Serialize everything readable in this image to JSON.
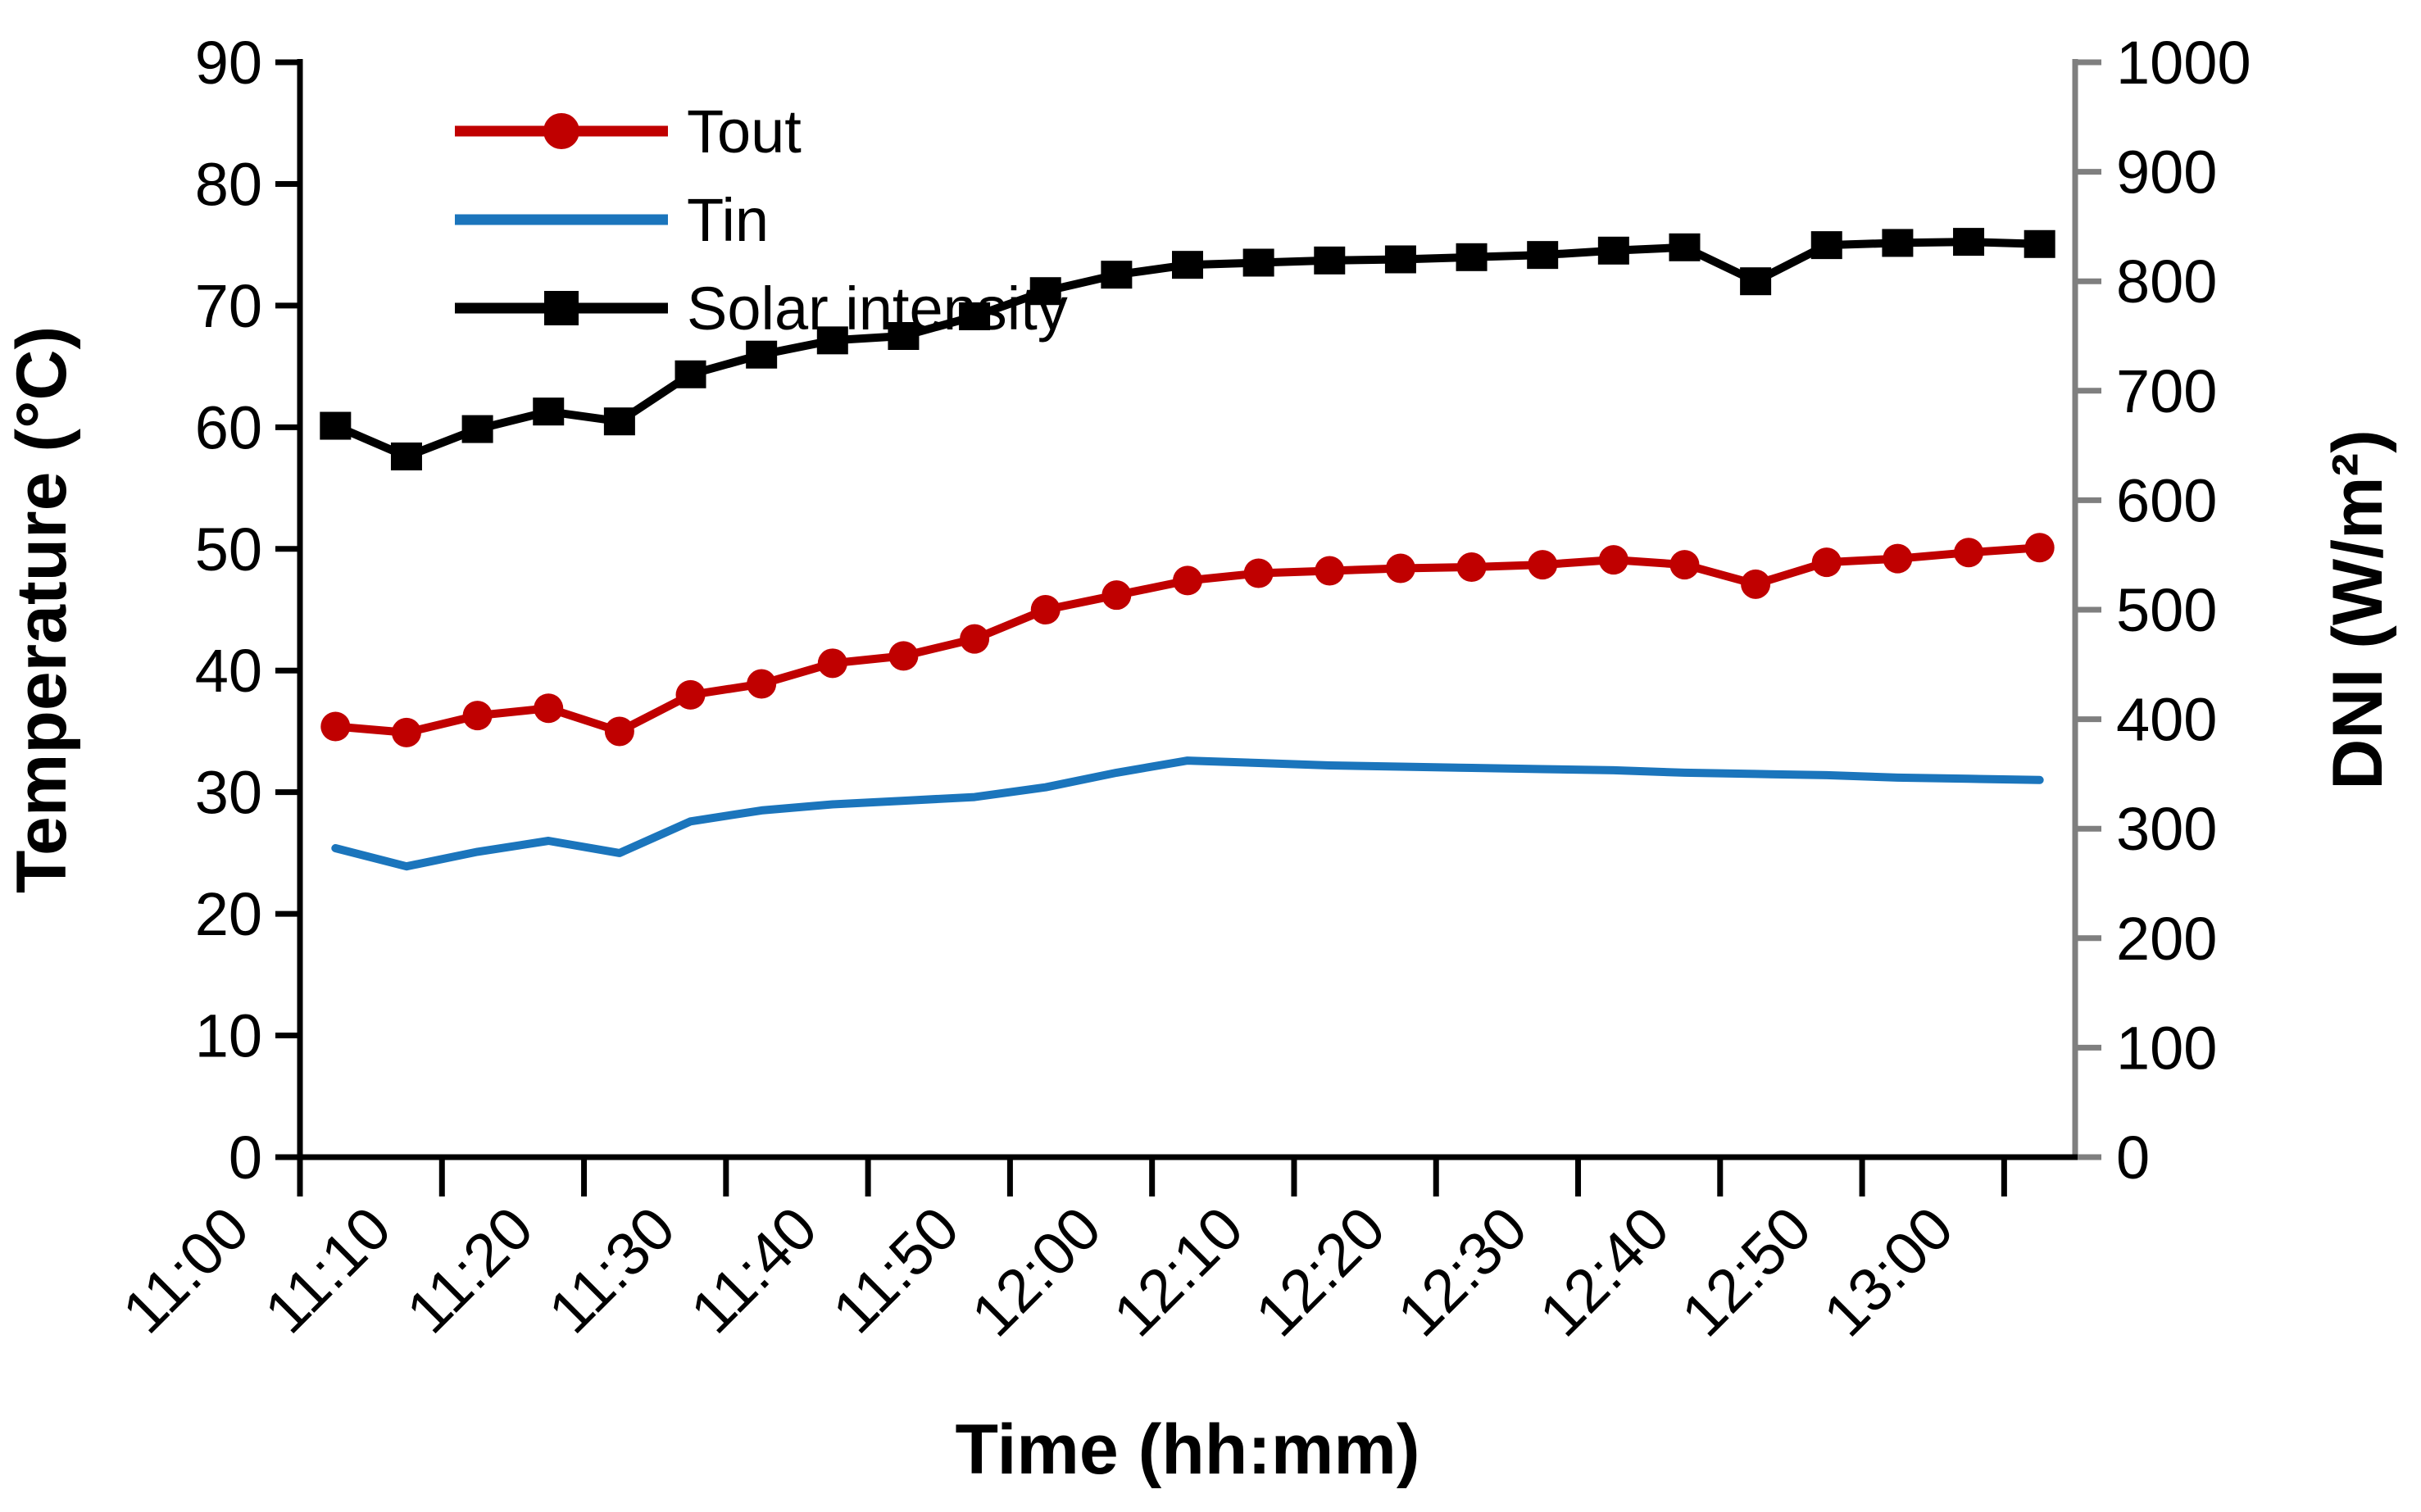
{
  "chart_data": {
    "type": "line",
    "title": "",
    "xlabel": "Time (hh:mm)",
    "ylabel_left": "Temperature (°C)",
    "ylabel_right": "DNI (W/m²)",
    "grid": false,
    "legend_position": "top-left-inside",
    "x_categories": [
      "11:00",
      "11:05",
      "11:10",
      "11:15",
      "11:20",
      "11:25",
      "11:30",
      "11:35",
      "11:40",
      "11:45",
      "11:50",
      "11:55",
      "12:00",
      "12:05",
      "12:10",
      "12:15",
      "12:20",
      "12:25",
      "12:30",
      "12:35",
      "12:40",
      "12:45",
      "12:50",
      "12:55",
      "13:00"
    ],
    "x_tick_labels": [
      "11:00",
      "11:10",
      "11:20",
      "11:30",
      "11:40",
      "11:50",
      "12:00",
      "12:10",
      "12:20",
      "12:30",
      "12:40",
      "12:50",
      "13:00"
    ],
    "y_left_axis": {
      "label": "Temperature (°C)",
      "min": 0,
      "max": 90,
      "step": 10,
      "tick_labels": [
        "0",
        "10",
        "20",
        "30",
        "40",
        "50",
        "60",
        "70",
        "80",
        "90"
      ],
      "color": "#000000"
    },
    "y_right_axis": {
      "label": "DNI (W/m²)",
      "min": 0,
      "max": 1000,
      "step": 100,
      "tick_labels": [
        "0",
        "100",
        "200",
        "300",
        "400",
        "500",
        "600",
        "700",
        "800",
        "900",
        "1000"
      ],
      "color": "#7F7F7F"
    },
    "series": [
      {
        "name": "Tout",
        "axis": "left",
        "color": "#C00000",
        "marker": "circle",
        "values": [
          35.4,
          34.9,
          36.3,
          36.9,
          35.0,
          38.0,
          38.9,
          40.6,
          41.2,
          42.6,
          45.0,
          46.2,
          47.4,
          48.0,
          48.2,
          48.4,
          48.5,
          48.7,
          49.1,
          48.7,
          47.1,
          48.9,
          49.2,
          49.7,
          50.1
        ]
      },
      {
        "name": "Tin",
        "axis": "left",
        "color": "#1B75BC",
        "marker": "none",
        "values": [
          25.4,
          23.9,
          25.1,
          26.0,
          25.0,
          27.6,
          28.5,
          29.0,
          29.3,
          29.6,
          30.4,
          31.6,
          32.6,
          32.4,
          32.2,
          32.1,
          32.0,
          31.9,
          31.8,
          31.6,
          31.5,
          31.4,
          31.2,
          31.1,
          31.0
        ]
      },
      {
        "name": "Solar intensity",
        "axis": "right",
        "color": "#000000",
        "marker": "square",
        "values": [
          668,
          640,
          665,
          681,
          672,
          715,
          733,
          746,
          750,
          768,
          791,
          806,
          815,
          817,
          819,
          820,
          822,
          824,
          828,
          831,
          800,
          833,
          835,
          836,
          834
        ]
      }
    ]
  }
}
